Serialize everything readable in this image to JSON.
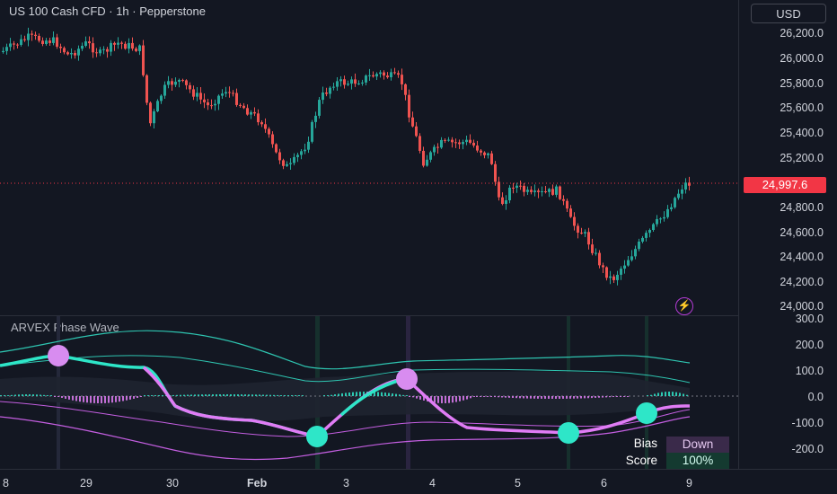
{
  "header": {
    "title": "US 100 Cash CFD · 1h · Pepperstone",
    "currency": "USD"
  },
  "price_axis": {
    "ticks": [
      "26,200.0",
      "26,000.0",
      "25,800.0",
      "25,600.0",
      "25,400.0",
      "25,200.0",
      "24,800.0",
      "24,600.0",
      "24,400.0",
      "24,200.0",
      "24,000.0"
    ],
    "last_price": "24,997.6"
  },
  "indicator": {
    "name": "ARVEX Phase Wave",
    "ticks": [
      "300.0",
      "200.0",
      "100.0",
      "0.0",
      "-100.0",
      "-200.0"
    ],
    "bias_label": "Bias",
    "bias_value": "Down",
    "score_label": "Score",
    "score_value": "100%"
  },
  "time_axis": {
    "labels": [
      "8",
      "29",
      "30",
      "Feb",
      "3",
      "4",
      "5",
      "6",
      "9"
    ]
  },
  "icons": {
    "alert": "lightning-bolt-icon"
  },
  "colors": {
    "background": "#131722",
    "up": "#26a69a",
    "down": "#ef5350",
    "last_price": "#f23645",
    "wave_up": "#2ee6c8",
    "wave_down": "#e07cf5",
    "bias_down_bg": "#3a2a4a",
    "score_bg": "#143a30"
  }
}
